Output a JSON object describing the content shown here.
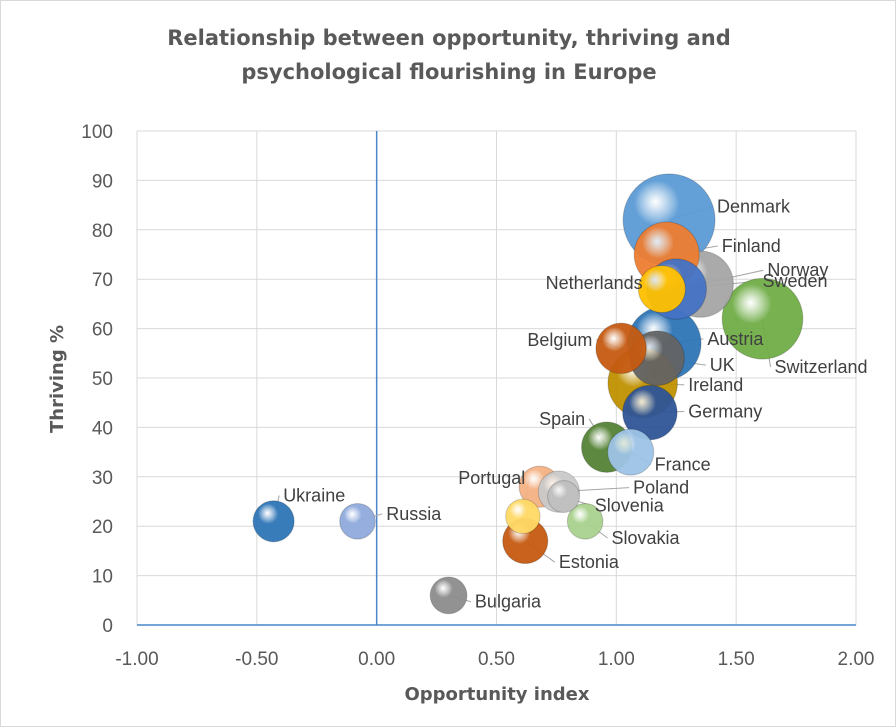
{
  "chart_data": {
    "type": "bubble",
    "title_lines": [
      "Relationship between opportunity, thriving and",
      "psychological flourishing in Europe"
    ],
    "xlabel": "Opportunity index",
    "ylabel": "Thriving %",
    "xlim": [
      -1.0,
      2.0
    ],
    "ylim": [
      0,
      100
    ],
    "x_ticks": [
      "-1.00",
      "-0.50",
      "0.00",
      "0.50",
      "1.00",
      "1.50",
      "2.00"
    ],
    "y_ticks": [
      "0",
      "10",
      "20",
      "30",
      "40",
      "50",
      "60",
      "70",
      "80",
      "90",
      "100"
    ],
    "grid": true,
    "legend": "none",
    "points": [
      {
        "name": "Denmark",
        "x": 1.22,
        "y": 82,
        "size": 1.0,
        "color": "#5b9bd5"
      },
      {
        "name": "Finland",
        "x": 1.21,
        "y": 75,
        "size": 0.5,
        "color": "#ed7d31"
      },
      {
        "name": "Norway",
        "x": 1.35,
        "y": 69,
        "size": 0.52,
        "color": "#a5a5a5"
      },
      {
        "name": "Netherlands",
        "x": 1.19,
        "y": 68,
        "size": 0.26,
        "color": "#ffc000"
      },
      {
        "name": "Sweden",
        "x": 1.25,
        "y": 68,
        "size": 0.43,
        "color": "#4472c4"
      },
      {
        "name": "Switzerland",
        "x": 1.61,
        "y": 62,
        "size": 0.77,
        "color": "#70ad47"
      },
      {
        "name": "Belgium",
        "x": 1.02,
        "y": 56,
        "size": 0.3,
        "color": "#c55a11"
      },
      {
        "name": "Austria",
        "x": 1.2,
        "y": 57,
        "size": 0.64,
        "color": "#2e75b6"
      },
      {
        "name": "UK",
        "x": 1.17,
        "y": 54,
        "size": 0.35,
        "color": "#636363"
      },
      {
        "name": "Ireland",
        "x": 1.11,
        "y": 49,
        "size": 0.57,
        "color": "#bf9000"
      },
      {
        "name": "Germany",
        "x": 1.14,
        "y": 43,
        "size": 0.35,
        "color": "#2f5597"
      },
      {
        "name": "Spain",
        "x": 0.96,
        "y": 36,
        "size": 0.3,
        "color": "#548235"
      },
      {
        "name": "France",
        "x": 1.06,
        "y": 35,
        "size": 0.25,
        "color": "#9dc3e6"
      },
      {
        "name": "Portugal",
        "x": 0.68,
        "y": 28,
        "size": 0.2,
        "color": "#f4b183"
      },
      {
        "name": "Poland",
        "x": 0.76,
        "y": 27,
        "size": 0.2,
        "color": "#c9c9c9"
      },
      {
        "name": "Slovenia",
        "x": 0.78,
        "y": 26,
        "size": 0.12,
        "color": "#bfbfbf"
      },
      {
        "name": "Ukraine",
        "x": -0.43,
        "y": 21,
        "size": 0.2,
        "color": "#2e75b6"
      },
      {
        "name": "Russia",
        "x": -0.08,
        "y": 21,
        "size": 0.15,
        "color": "#8faadc"
      },
      {
        "name": "Unlabeled",
        "x": 0.61,
        "y": 22,
        "size": 0.14,
        "color": "#ffd966"
      },
      {
        "name": "Slovakia",
        "x": 0.87,
        "y": 21,
        "size": 0.15,
        "color": "#a9d18e"
      },
      {
        "name": "Estonia",
        "x": 0.62,
        "y": 17,
        "size": 0.24,
        "color": "#c55a11"
      },
      {
        "name": "Bulgaria",
        "x": 0.3,
        "y": 6,
        "size": 0.16,
        "color": "#8c8c8c"
      }
    ],
    "labels": [
      {
        "text": "Denmark",
        "for": "Denmark",
        "dx": 0.2,
        "dy": 1.5,
        "anchor": "start"
      },
      {
        "text": "Finland",
        "for": "Finland",
        "dx": 0.23,
        "dy": 0.5,
        "anchor": "start"
      },
      {
        "text": "Norway",
        "for": "Norway",
        "dx": 0.28,
        "dy": 1.6,
        "anchor": "start"
      },
      {
        "text": "Netherlands",
        "for": "Netherlands",
        "dx": -0.08,
        "dy": 0.0,
        "anchor": "end"
      },
      {
        "text": "Sweden",
        "for": "Sweden",
        "dx": 0.36,
        "dy": 0.4,
        "anchor": "start"
      },
      {
        "text": "Switzerland",
        "for": "Switzerland",
        "dx": 0.05,
        "dy": -11.0,
        "anchor": "start"
      },
      {
        "text": "Belgium",
        "for": "Belgium",
        "dx": -0.12,
        "dy": 0.5,
        "anchor": "end"
      },
      {
        "text": "Austria",
        "for": "Austria",
        "dx": 0.18,
        "dy": -0.3,
        "anchor": "start"
      },
      {
        "text": "UK",
        "for": "UK",
        "dx": 0.22,
        "dy": -2.6,
        "anchor": "start"
      },
      {
        "text": "Ireland",
        "for": "Ireland",
        "dx": 0.19,
        "dy": -1.6,
        "anchor": "start"
      },
      {
        "text": "Germany",
        "for": "Germany",
        "dx": 0.16,
        "dy": -1.0,
        "anchor": "start"
      },
      {
        "text": "Spain",
        "for": "Spain",
        "dx": -0.09,
        "dy": 4.5,
        "anchor": "end"
      },
      {
        "text": "France",
        "for": "France",
        "dx": 0.1,
        "dy": -3.7,
        "anchor": "start"
      },
      {
        "text": "Portugal",
        "for": "Unlabeled",
        "dx": 0.01,
        "dy": 6.5,
        "anchor": "end"
      },
      {
        "text": "Poland",
        "for": "Poland",
        "dx": 0.31,
        "dy": -0.4,
        "anchor": "start"
      },
      {
        "text": "Slovenia",
        "for": "Slovenia",
        "dx": 0.13,
        "dy": -3.0,
        "anchor": "start"
      },
      {
        "text": "Ukraine",
        "for": "Ukraine",
        "dx": 0.04,
        "dy": 4.0,
        "anchor": "start"
      },
      {
        "text": "Russia",
        "for": "Russia",
        "dx": 0.12,
        "dy": 0.3,
        "anchor": "start"
      },
      {
        "text": "Slovakia",
        "for": "Slovakia",
        "dx": 0.11,
        "dy": -4.6,
        "anchor": "start"
      },
      {
        "text": "Estonia",
        "for": "Estonia",
        "dx": 0.14,
        "dy": -5.5,
        "anchor": "start"
      },
      {
        "text": "Bulgaria",
        "for": "Bulgaria",
        "dx": 0.11,
        "dy": -2.5,
        "anchor": "start"
      }
    ]
  }
}
